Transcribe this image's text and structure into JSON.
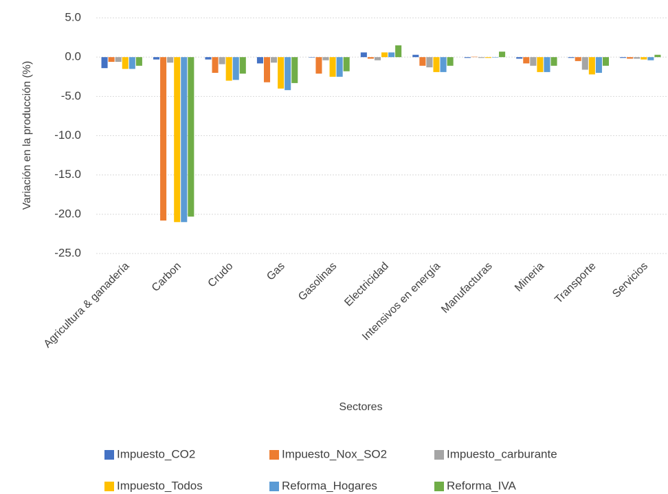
{
  "chart_data": {
    "type": "bar",
    "y_axis_label": "Variación en la producción (%)",
    "x_axis_label": "Sectores",
    "categories": [
      "Agricultura & ganadería",
      "Carbon",
      "Crudo",
      "Gas",
      "Gasolinas",
      "Electricidad",
      "Intensivos en energía",
      "Manufacturas",
      "Mineria",
      "Transporte",
      "Servicios"
    ],
    "series": [
      {
        "name": "Impuesto_CO2",
        "color": "#4472c4",
        "values": [
          -1.4,
          -0.3,
          -0.3,
          -0.8,
          -0.05,
          0.6,
          0.3,
          -0.1,
          -0.2,
          -0.1,
          -0.1
        ]
      },
      {
        "name": "Impuesto_Nox_SO2",
        "color": "#ed7d31",
        "values": [
          -0.6,
          -20.8,
          -2.0,
          -3.2,
          -2.1,
          -0.2,
          -1.1,
          0.05,
          -0.8,
          -0.5,
          -0.2
        ]
      },
      {
        "name": "Impuesto_carburante",
        "color": "#a5a5a5",
        "values": [
          -0.6,
          -0.7,
          -0.9,
          -0.7,
          -0.4,
          -0.4,
          -1.3,
          -0.1,
          -1.1,
          -1.6,
          -0.2
        ]
      },
      {
        "name": "Impuesto_Todos",
        "color": "#ffc000",
        "values": [
          -1.5,
          -21.0,
          -3.0,
          -4.0,
          -2.5,
          0.6,
          -1.9,
          -0.1,
          -1.9,
          -2.2,
          -0.3
        ]
      },
      {
        "name": "Reforma_Hogares",
        "color": "#5b9bd5",
        "values": [
          -1.5,
          -21.0,
          -2.9,
          -4.2,
          -2.5,
          0.6,
          -1.9,
          -0.05,
          -1.9,
          -2.0,
          -0.4
        ]
      },
      {
        "name": "Reforma_IVA",
        "color": "#70ad47",
        "values": [
          -1.1,
          -20.3,
          -2.1,
          -3.3,
          -1.8,
          1.5,
          -1.1,
          0.7,
          -1.1,
          -1.1,
          0.3
        ]
      }
    ],
    "ylim": [
      -25,
      5
    ],
    "yticks": [
      {
        "value": 5,
        "label": "5.0"
      },
      {
        "value": 0,
        "label": "0.0"
      },
      {
        "value": -5,
        "label": "-5.0"
      },
      {
        "value": -10,
        "label": "-10.0"
      },
      {
        "value": -15,
        "label": "-15.0"
      },
      {
        "value": -20,
        "label": "-20.0"
      },
      {
        "value": -25,
        "label": "-25.0"
      }
    ],
    "grid": true,
    "legend_position": "bottom"
  }
}
